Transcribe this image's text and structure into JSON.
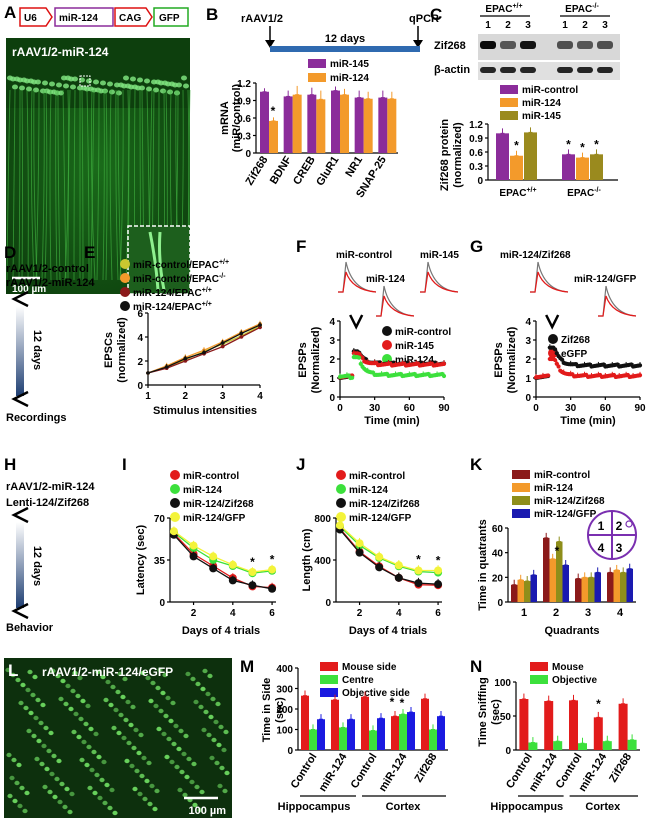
{
  "panels": {
    "A": {
      "letter": "A",
      "construct": [
        "U6",
        "miR-124",
        "CAG",
        "GFP"
      ],
      "title": "rAAV1/2-miR-124",
      "scale": "100 µm"
    },
    "B": {
      "letter": "B",
      "top_left": "rAAV1/2",
      "top_right": "qPCR",
      "duration": "12 days",
      "ylabel": [
        "mRNA",
        "(miR/control)"
      ]
    },
    "C": {
      "letter": "C",
      "genotypes": [
        "EPAC+/+",
        "EPAC-/-"
      ],
      "lanes": [
        "1",
        "2",
        "3",
        "1",
        "2",
        "3"
      ],
      "blots": [
        "Zif268",
        "β-actin"
      ],
      "ylabel": [
        "Zif268 protein",
        "(normalized)"
      ]
    },
    "D": {
      "letter": "D",
      "lines": [
        "rAAV1/2-control",
        "rAAV1/2-miR-124"
      ],
      "duration": "12 days",
      "bottom": "Recordings"
    },
    "E": {
      "letter": "E",
      "ylabel": [
        "EPSCs",
        "(normalized)"
      ],
      "xlabel": "Stimulus intensities"
    },
    "F": {
      "letter": "F",
      "trace_labels": [
        "miR-control",
        "miR-145",
        "miR-124"
      ],
      "ylabel": [
        "EPSPs",
        "(Normalized)"
      ],
      "xlabel": "Time (min)"
    },
    "G": {
      "letter": "G",
      "trace_labels": [
        "miR-124/Zif268",
        "miR-124/GFP"
      ],
      "ylabel": [
        "EPSPs",
        "(Normalized)"
      ],
      "xlabel": "Time (min)"
    },
    "H": {
      "letter": "H",
      "lines": [
        "rAAV1/2-miR-124",
        "Lenti-124/Zif268"
      ],
      "duration": "12 days",
      "bottom": "Behavior"
    },
    "I": {
      "letter": "I",
      "ylabel": "Latency (sec)",
      "xlabel": "Days of 4 trials"
    },
    "J": {
      "letter": "J",
      "ylabel": "Length (cm)",
      "xlabel": "Days of 4 trials"
    },
    "K": {
      "letter": "K",
      "ylabel": "Time in quatrants",
      "xlabel": "Quadrants",
      "quadrant_map": [
        "1",
        "2",
        "4",
        "3"
      ]
    },
    "L": {
      "letter": "L",
      "title": "rAAV1/2-miR-124/eGFP",
      "scale": "100 µm"
    },
    "M": {
      "letter": "M",
      "ylabel": [
        "Time in Side",
        "(sec)"
      ],
      "groups": [
        "Control",
        "miR-124",
        "Control",
        "miR-124",
        "Zif268"
      ],
      "regions": [
        "Hippocampus",
        "Cortex"
      ]
    },
    "N": {
      "letter": "N",
      "ylabel": [
        "Time Sniffing",
        "(sec)"
      ],
      "groups": [
        "Control",
        "miR-124",
        "Control",
        "miR-124",
        "Zif268"
      ],
      "regions": [
        "Hippocampus",
        "Cortex"
      ]
    }
  },
  "chart_data": [
    {
      "panel": "B",
      "type": "bar",
      "categories": [
        "Zif268",
        "BDNF",
        "CREB",
        "GluR1",
        "NR1",
        "SNAP-25"
      ],
      "series": [
        {
          "name": "miR-145",
          "color": "#8B2C9A",
          "values": [
            1.05,
            0.97,
            1.0,
            1.07,
            0.95,
            0.95
          ]
        },
        {
          "name": "miR-124",
          "color": "#F39A2B",
          "values": [
            0.55,
            1.0,
            0.92,
            1.0,
            0.93,
            0.93
          ]
        }
      ],
      "errors": [
        [
          0.06,
          0.1,
          0.12,
          0.07,
          0.12,
          0.12
        ],
        [
          0.06,
          0.15,
          0.15,
          0.1,
          0.12,
          0.12
        ]
      ],
      "ylim": [
        0,
        1.2
      ],
      "yticks": [
        "0",
        "0.3",
        "0.6",
        "0.9",
        "1.2"
      ],
      "annotations": [
        "*"
      ]
    },
    {
      "panel": "C",
      "type": "bar",
      "categories": [
        "EPAC+/+",
        "EPAC-/-"
      ],
      "series": [
        {
          "name": "miR-control",
          "color": "#8B2C9A",
          "values": [
            1.0,
            0.55
          ]
        },
        {
          "name": "miR-124",
          "color": "#F39A2B",
          "values": [
            0.52,
            0.48
          ]
        },
        {
          "name": "miR-145",
          "color": "#9A8A1E",
          "values": [
            1.02,
            0.55
          ]
        }
      ],
      "ylim": [
        0,
        1.2
      ],
      "yticks": [
        "0",
        "0.3",
        "0.6",
        "0.9",
        "1.2"
      ],
      "annotations": [
        "*",
        "*",
        "*",
        "*"
      ]
    },
    {
      "panel": "E",
      "type": "line",
      "x": [
        1,
        1.5,
        2,
        2.5,
        3,
        3.5,
        4
      ],
      "series": [
        {
          "name": "miR-control/EPAC+/+",
          "color": "#C8C830",
          "values": [
            1.0,
            1.5,
            2.1,
            2.8,
            3.4,
            4.1,
            4.9
          ]
        },
        {
          "name": "miR-control/EPAC-/-",
          "color": "#F39A2B",
          "values": [
            1.0,
            1.6,
            2.3,
            2.9,
            3.6,
            4.4,
            5.1
          ]
        },
        {
          "name": "miR-124/EPAC+/+",
          "color": "#8B1A1A",
          "values": [
            1.0,
            1.4,
            2.0,
            2.6,
            3.2,
            4.0,
            4.8
          ]
        },
        {
          "name": "miR-124/EPAC+/+",
          "color": "#111111",
          "values": [
            1.0,
            1.5,
            2.2,
            2.7,
            3.5,
            4.3,
            5.0
          ]
        }
      ],
      "ylim": [
        0,
        6
      ],
      "yticks": [
        "0",
        "2",
        "4",
        "6"
      ],
      "xticks": [
        "1",
        "2",
        "3",
        "4"
      ],
      "xlabel": "Stimulus intensities"
    },
    {
      "panel": "F",
      "type": "scatter",
      "series": [
        {
          "name": "miR-control",
          "color": "#111111",
          "baseline": 1.0,
          "peak": 2.4,
          "plateau": 1.75
        },
        {
          "name": "miR-145",
          "color": "#E21B1B",
          "baseline": 1.0,
          "peak": 2.3,
          "plateau": 1.7
        },
        {
          "name": "miR-124",
          "color": "#3CE03C",
          "baseline": 1.0,
          "peak": 2.1,
          "plateau": 1.15
        }
      ],
      "xlim": [
        0,
        90
      ],
      "ylim": [
        0,
        4
      ],
      "xticks": [
        "0",
        "30",
        "60",
        "90"
      ],
      "yticks": [
        "0",
        "1",
        "2",
        "3",
        "4"
      ]
    },
    {
      "panel": "G",
      "type": "scatter",
      "series": [
        {
          "name": "Zif268",
          "color": "#111111",
          "baseline": 1.0,
          "peak": 2.6,
          "plateau": 1.65
        },
        {
          "name": "eGFP",
          "color": "#E21B1B",
          "baseline": 1.0,
          "peak": 2.0,
          "plateau": 1.1
        }
      ],
      "xlim": [
        0,
        90
      ],
      "ylim": [
        0,
        4
      ],
      "xticks": [
        "0",
        "30",
        "60",
        "90"
      ],
      "yticks": [
        "0",
        "1",
        "2",
        "3",
        "4"
      ]
    },
    {
      "panel": "I",
      "type": "line",
      "x": [
        1,
        2,
        3,
        4,
        5,
        6
      ],
      "series": [
        {
          "name": "miR-control",
          "color": "#E21B1B",
          "values": [
            57,
            40,
            30,
            20,
            13,
            12
          ]
        },
        {
          "name": "miR-124",
          "color": "#3CE03C",
          "values": [
            58,
            45,
            35,
            30,
            24,
            26
          ]
        },
        {
          "name": "miR-124/Zif268",
          "color": "#111111",
          "values": [
            56,
            38,
            28,
            18,
            14,
            11
          ]
        },
        {
          "name": "miR-124/GFP",
          "color": "#F3F33A",
          "values": [
            59,
            47,
            38,
            31,
            25,
            27
          ]
        }
      ],
      "ylim": [
        0,
        70
      ],
      "yticks": [
        "0",
        "35",
        "70"
      ],
      "xticks": [
        "2",
        "4",
        "6"
      ],
      "annotations": [
        "*",
        "*"
      ]
    },
    {
      "panel": "J",
      "type": "line",
      "x": [
        1,
        2,
        3,
        4,
        5,
        6
      ],
      "series": [
        {
          "name": "miR-control",
          "color": "#E21B1B",
          "values": [
            700,
            480,
            340,
            230,
            165,
            160
          ]
        },
        {
          "name": "miR-124",
          "color": "#3CE03C",
          "values": [
            720,
            540,
            420,
            340,
            290,
            280
          ]
        },
        {
          "name": "miR-124/Zif268",
          "color": "#111111",
          "values": [
            690,
            470,
            330,
            230,
            180,
            170
          ]
        },
        {
          "name": "miR-124/GFP",
          "color": "#F3F33A",
          "values": [
            730,
            560,
            430,
            350,
            300,
            300
          ]
        }
      ],
      "ylim": [
        0,
        800
      ],
      "yticks": [
        "0",
        "400",
        "800"
      ],
      "xticks": [
        "2",
        "4",
        "6"
      ],
      "annotations": [
        "*",
        "*"
      ]
    },
    {
      "panel": "K",
      "type": "bar",
      "categories": [
        "1",
        "2",
        "3",
        "4"
      ],
      "series": [
        {
          "name": "miR-control",
          "color": "#8B1A1A",
          "values": [
            14,
            52,
            19,
            24
          ]
        },
        {
          "name": "miR-124",
          "color": "#F39A2B",
          "values": [
            18,
            35,
            20,
            26
          ]
        },
        {
          "name": "miR-124/Zif268",
          "color": "#8E8E1A",
          "values": [
            17,
            49,
            20,
            24
          ]
        },
        {
          "name": "miR-124/GFP",
          "color": "#1A1AB0",
          "values": [
            22,
            30,
            24,
            27
          ]
        }
      ],
      "ylim": [
        0,
        60
      ],
      "yticks": [
        "0",
        "20",
        "40",
        "60"
      ],
      "annotations": [
        "*"
      ]
    },
    {
      "panel": "M",
      "type": "bar",
      "categories": [
        "Control",
        "miR-124",
        "Control",
        "miR-124",
        "Zif268"
      ],
      "series": [
        {
          "name": "Mouse side",
          "color": "#E21B1B",
          "values": [
            265,
            245,
            260,
            165,
            250
          ]
        },
        {
          "name": "Centre",
          "color": "#3CE03C",
          "values": [
            100,
            110,
            95,
            175,
            100
          ]
        },
        {
          "name": "Objective side",
          "color": "#1A1AE0",
          "values": [
            150,
            150,
            155,
            185,
            165
          ]
        }
      ],
      "ylim": [
        0,
        400
      ],
      "yticks": [
        "0",
        "100",
        "200",
        "300",
        "400"
      ],
      "annotations": [
        "*",
        "*"
      ]
    },
    {
      "panel": "N",
      "type": "bar",
      "categories": [
        "Control",
        "miR-124",
        "Control",
        "miR-124",
        "Zif268"
      ],
      "series": [
        {
          "name": "Mouse",
          "color": "#E21B1B",
          "values": [
            75,
            72,
            73,
            48,
            68
          ]
        },
        {
          "name": "Objective",
          "color": "#3CE03C",
          "values": [
            11,
            13,
            10,
            13,
            15
          ]
        }
      ],
      "ylim": [
        0,
        100
      ],
      "yticks": [
        "0",
        "50",
        "100"
      ],
      "annotations": [
        "*"
      ]
    }
  ]
}
